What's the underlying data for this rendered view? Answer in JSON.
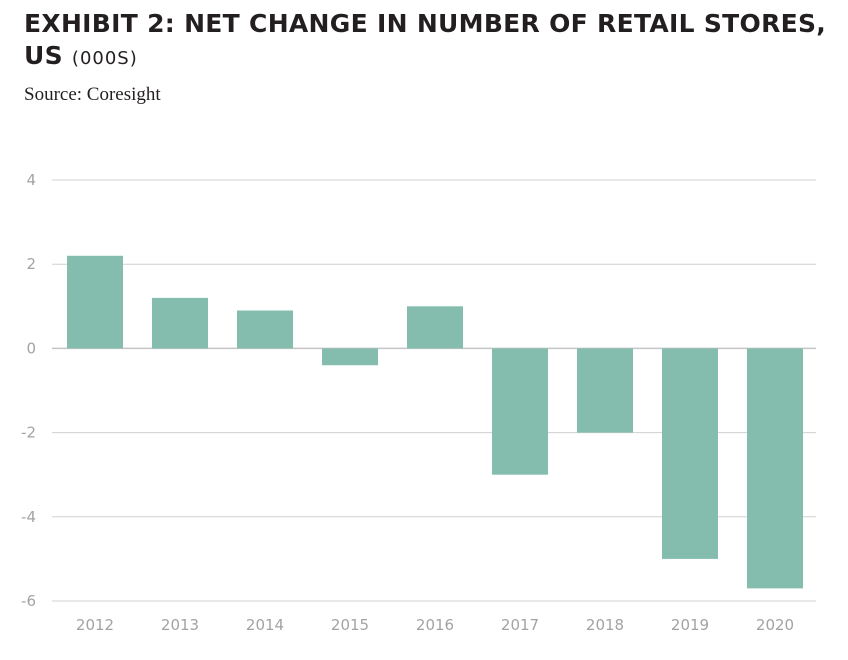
{
  "title_main": "EXHIBIT 2: NET CHANGE IN NUMBER OF RETAIL STORES, US",
  "title_unit": "(000S)",
  "source": "Source: Coresight",
  "colors": {
    "bar": "#84bdae",
    "grid": "#d0d0d0",
    "zero_line": "#c4c4c4",
    "text": "#231f20",
    "tick": "#a3a3a3"
  },
  "chart_data": {
    "type": "bar",
    "title": "EXHIBIT 2: NET CHANGE IN NUMBER OF RETAIL STORES, US (000S)",
    "xlabel": "",
    "ylabel": "",
    "categories": [
      "2012",
      "2013",
      "2014",
      "2015",
      "2016",
      "2017",
      "2018",
      "2019",
      "2020"
    ],
    "values": [
      2.2,
      1.2,
      0.9,
      -0.4,
      1.0,
      -3.0,
      -2.0,
      -5.0,
      -5.7
    ],
    "ylim": [
      -6,
      4
    ],
    "yticks": [
      4,
      2,
      0,
      -2,
      -4,
      -6
    ],
    "grid": true,
    "legend": "none"
  }
}
